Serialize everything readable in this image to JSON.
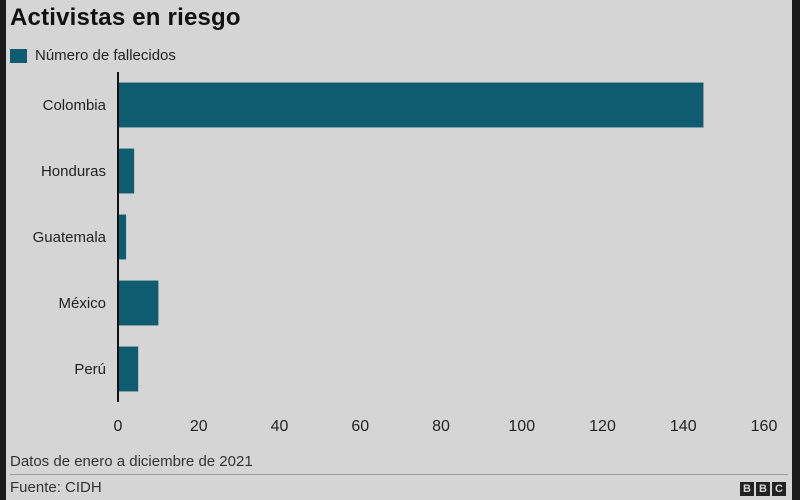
{
  "chart_data": {
    "type": "bar",
    "orientation": "horizontal",
    "title": "Activistas en riesgo",
    "legend": [
      "Número de fallecidos"
    ],
    "legend_position": "top-left",
    "categories": [
      "Colombia",
      "Honduras",
      "Guatemala",
      "México",
      "Perú"
    ],
    "series": [
      {
        "name": "Número de fallecidos",
        "values": [
          145,
          4,
          2,
          10,
          5
        ]
      }
    ],
    "xlim": [
      0,
      160
    ],
    "xticks": [
      0,
      20,
      40,
      60,
      80,
      100,
      120,
      140,
      160
    ],
    "grid": false,
    "bar_color": "#0f5b70"
  },
  "note": "Datos de enero a diciembre de 2021",
  "source": "Fuente: CIDH",
  "logo": "BBC"
}
